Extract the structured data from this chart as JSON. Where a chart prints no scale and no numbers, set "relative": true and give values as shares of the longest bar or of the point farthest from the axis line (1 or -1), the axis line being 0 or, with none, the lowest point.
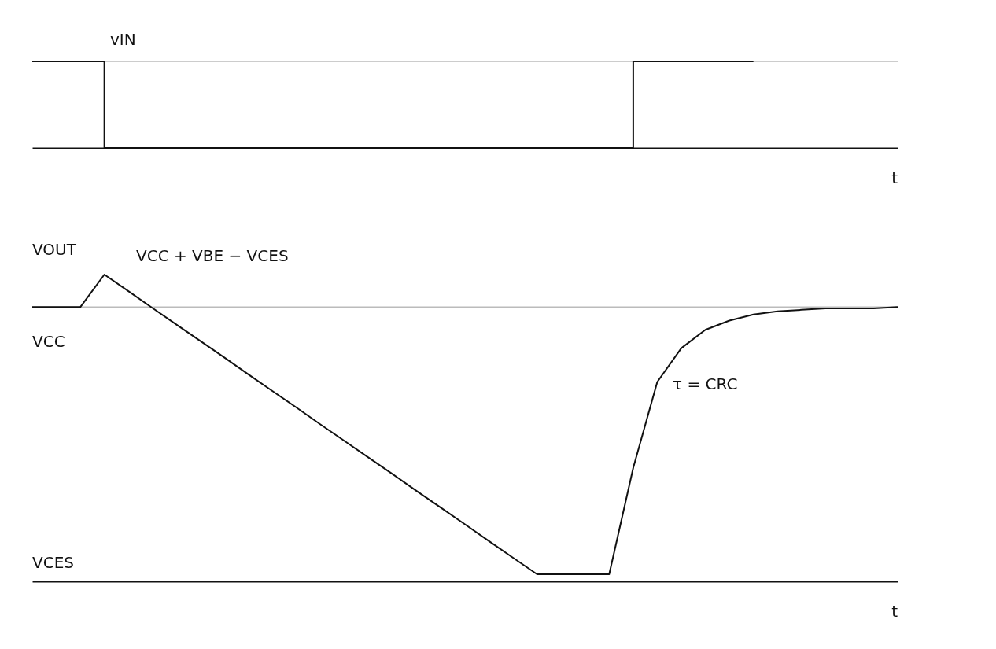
{
  "chart_data": [
    {
      "type": "step",
      "relative": true,
      "tick_labels": false,
      "categories": [
        null,
        null,
        null,
        null,
        null,
        null,
        null,
        null,
        null,
        null,
        null,
        null,
        null,
        null,
        null,
        null,
        null,
        null,
        null,
        null,
        null,
        null,
        null,
        null,
        null,
        null,
        null,
        null,
        null,
        null,
        null,
        null,
        null,
        null,
        null,
        null,
        null
      ],
      "series": [
        {
          "color": "#111111",
          "values": [
            1,
            1,
            1,
            0,
            0,
            0,
            0,
            0,
            0,
            0,
            0,
            0,
            0,
            0,
            0,
            0,
            0,
            0,
            0,
            0,
            0,
            0,
            0,
            0,
            0,
            1,
            1,
            1,
            1,
            1,
            1,
            null,
            null,
            null,
            null,
            null,
            null
          ]
        }
      ],
      "ref_lines": [
        {
          "axis": "y",
          "value": 1,
          "color": "#bbbbbb"
        }
      ],
      "annotations": [
        "vIN",
        "t"
      ]
    },
    {
      "type": "line",
      "relative": true,
      "tick_labels": false,
      "categories": [
        null,
        null,
        null,
        null,
        null,
        null,
        null,
        null,
        null,
        null,
        null,
        null,
        null,
        null,
        null,
        null,
        null,
        null,
        null,
        null,
        null,
        null,
        null,
        null,
        null,
        null,
        null,
        null,
        null,
        null,
        null,
        null,
        null,
        null,
        null,
        null,
        null
      ],
      "series": [
        {
          "color": "#111111",
          "values": [
            0.894,
            0.894,
            0.894,
            1.0,
            0.946,
            0.891,
            0.837,
            0.783,
            0.729,
            0.674,
            0.62,
            0.566,
            0.511,
            0.457,
            0.403,
            0.349,
            0.294,
            0.24,
            0.186,
            0.131,
            0.077,
            0.023,
            0.023,
            0.023,
            0.023,
            0.37,
            0.65,
            0.76,
            0.82,
            0.85,
            0.87,
            0.88,
            0.885,
            0.89,
            0.89,
            0.89,
            0.894
          ]
        }
      ],
      "ref_lines": [
        {
          "axis": "y",
          "value": 0.894,
          "color": "#bbbbbb"
        }
      ],
      "annotations": [
        "VOUT",
        "VCC + VBE − VCES",
        "VCC",
        "VCES",
        "t",
        "τ = CRC"
      ]
    }
  ]
}
